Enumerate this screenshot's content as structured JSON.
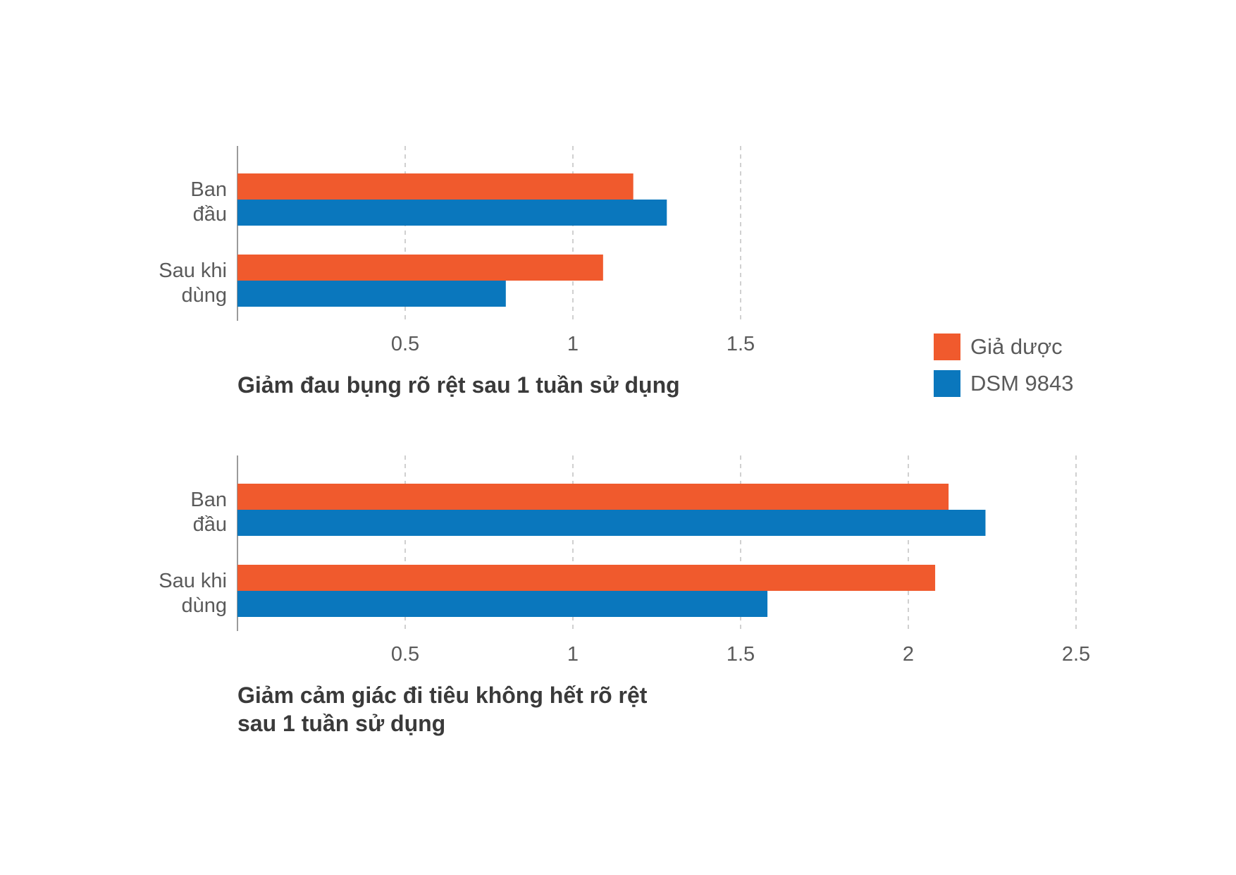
{
  "colors": {
    "placebo": "#f05a2d",
    "dsm": "#0a77bd",
    "axis": "#9b9b9b",
    "grid": "#c4c4c4",
    "text": "#5a5a5a",
    "title": "#3a3a3a"
  },
  "legend": [
    {
      "label": "Giả dược",
      "color": "#f05a2d"
    },
    {
      "label": "DSM 9843",
      "color": "#0a77bd"
    }
  ],
  "chart_data": [
    {
      "type": "bar",
      "orientation": "horizontal",
      "title": [
        "Giảm đau bụng rõ rệt sau 1 tuần sử dụng"
      ],
      "categories": [
        [
          "Ban",
          "đầu"
        ],
        [
          "Sau khi",
          "dùng"
        ]
      ],
      "series": [
        {
          "name": "Giả dược",
          "values": [
            1.18,
            1.09
          ]
        },
        {
          "name": "DSM 9843",
          "values": [
            1.28,
            0.8
          ]
        }
      ],
      "xticks": [
        "0.5",
        "1",
        "1.5"
      ],
      "xlim": [
        0,
        1.5
      ],
      "grid": true,
      "legend_position": "right"
    },
    {
      "type": "bar",
      "orientation": "horizontal",
      "title": [
        "Giảm cảm giác đi tiêu không hết rõ rệt",
        "sau 1 tuần sử dụng"
      ],
      "categories": [
        [
          "Ban",
          "đầu"
        ],
        [
          "Sau khi",
          "dùng"
        ]
      ],
      "series": [
        {
          "name": "Giả dược",
          "values": [
            2.12,
            2.08
          ]
        },
        {
          "name": "DSM 9843",
          "values": [
            2.23,
            1.58
          ]
        }
      ],
      "xticks": [
        "0.5",
        "1",
        "1.5",
        "2",
        "2.5"
      ],
      "xlim": [
        0,
        2.5
      ],
      "grid": true
    }
  ]
}
